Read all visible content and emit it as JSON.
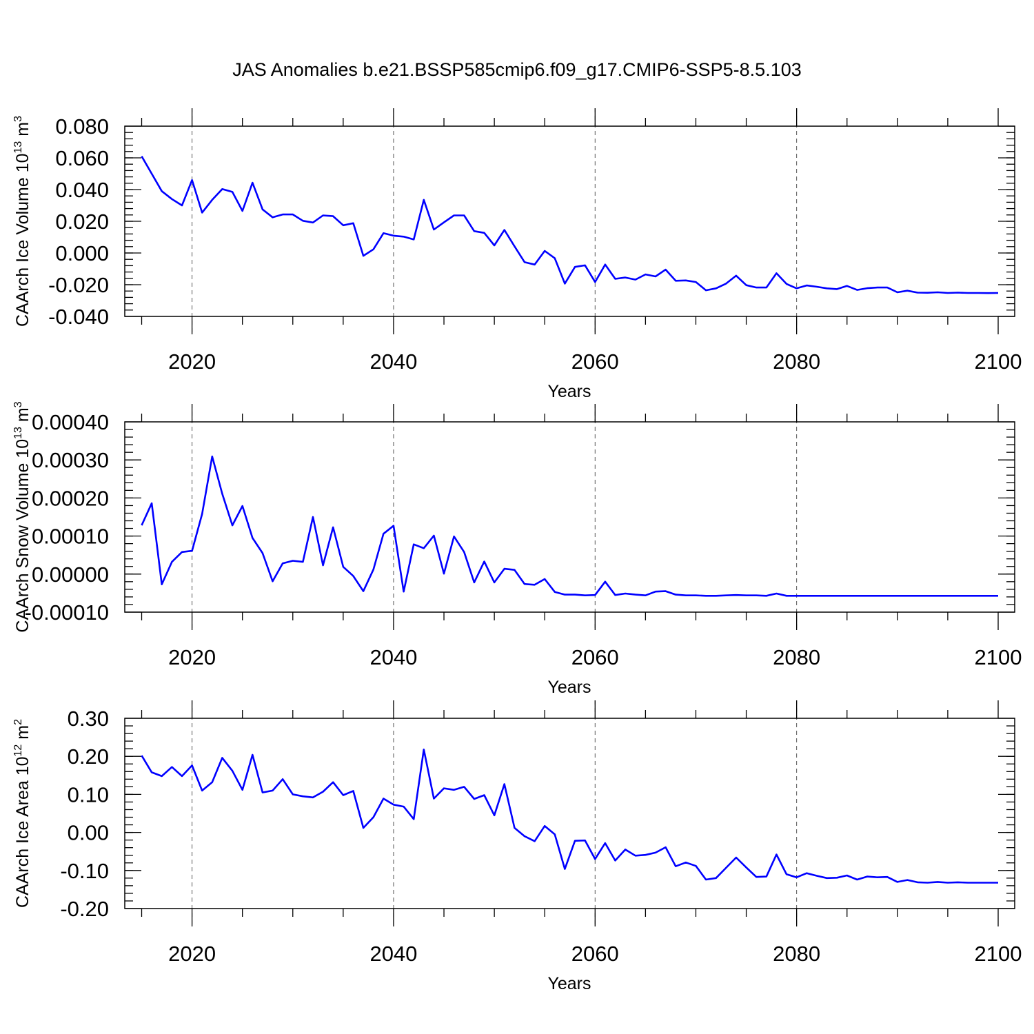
{
  "title": "JAS Anomalies b.e21.BSSP585cmip6.f09_g17.CMIP6-SSP5-8.5.103",
  "colors": {
    "series": "#0000ff",
    "axis": "#000000",
    "grid": "#555555"
  },
  "chart_data": [
    {
      "type": "line",
      "ylabel": "CAArch Ice Volume 10",
      "ylabel_exponent": "13",
      "ylabel_unit": " m",
      "ylabel_unit_exponent": "3",
      "xlabel": "Years",
      "xlim": [
        2015,
        2100
      ],
      "ylim": [
        -0.04,
        0.08
      ],
      "yticks": [
        -0.04,
        -0.02,
        0.0,
        0.02,
        0.04,
        0.06,
        0.08
      ],
      "ytick_labels": [
        "-0.040",
        "-0.020",
        "0.000",
        "0.020",
        "0.040",
        "0.060",
        "0.080"
      ],
      "ytick_minor_step": 0.004,
      "xticks": [
        2020,
        2040,
        2060,
        2080,
        2100
      ],
      "xtick_labels": [
        "2020",
        "2040",
        "2060",
        "2080",
        "2100"
      ],
      "grid_x": [
        2020,
        2040,
        2060,
        2080
      ],
      "x_start": 2015,
      "series": [
        {
          "name": "CAArch Ice Volume",
          "values": [
            0.061,
            0.05,
            0.039,
            0.034,
            0.03,
            0.046,
            0.0255,
            0.0335,
            0.0403,
            0.0385,
            0.0265,
            0.0443,
            0.0275,
            0.0225,
            0.0243,
            0.0243,
            0.0203,
            0.0192,
            0.0237,
            0.0232,
            0.0175,
            0.0188,
            -0.0018,
            0.0023,
            0.0125,
            0.0109,
            0.0103,
            0.0085,
            0.0335,
            0.0148,
            0.0193,
            0.0237,
            0.0237,
            0.0138,
            0.0127,
            0.0048,
            0.0145,
            0.0042,
            -0.0058,
            -0.0073,
            0.0013,
            -0.0033,
            -0.0193,
            -0.0088,
            -0.0078,
            -0.0183,
            -0.0073,
            -0.0163,
            -0.0155,
            -0.0168,
            -0.0135,
            -0.0148,
            -0.0105,
            -0.0175,
            -0.0173,
            -0.0183,
            -0.0235,
            -0.0223,
            -0.0193,
            -0.0143,
            -0.0203,
            -0.0218,
            -0.0218,
            -0.0128,
            -0.0195,
            -0.0223,
            -0.0205,
            -0.0213,
            -0.0223,
            -0.0228,
            -0.0208,
            -0.0233,
            -0.0222,
            -0.0218,
            -0.0218,
            -0.0248,
            -0.0238,
            -0.025,
            -0.0251,
            -0.0248,
            -0.0252,
            -0.025,
            -0.0252,
            -0.0252,
            -0.0253,
            -0.0252
          ]
        }
      ]
    },
    {
      "type": "line",
      "ylabel": "CAArch Snow Volume 10",
      "ylabel_exponent": "13",
      "ylabel_unit": " m",
      "ylabel_unit_exponent": "3",
      "xlabel": "Years",
      "xlim": [
        2015,
        2100
      ],
      "ylim": [
        -0.0001,
        0.0004
      ],
      "yticks": [
        -0.0001,
        0.0,
        0.0001,
        0.0002,
        0.0003,
        0.0004
      ],
      "ytick_labels": [
        "-0.00010",
        "0.00000",
        "0.00010",
        "0.00020",
        "0.00030",
        "0.00040"
      ],
      "ytick_minor_step": 2e-05,
      "xticks": [
        2020,
        2040,
        2060,
        2080,
        2100
      ],
      "xtick_labels": [
        "2020",
        "2040",
        "2060",
        "2080",
        "2100"
      ],
      "grid_x": [
        2020,
        2040,
        2060,
        2080
      ],
      "x_start": 2015,
      "series": [
        {
          "name": "CAArch Snow Volume",
          "values": [
            0.000128,
            0.000186,
            -2.7e-05,
            3.2e-05,
            5.8e-05,
            6.1e-05,
            0.000158,
            0.000309,
            0.000211,
            0.000128,
            0.000179,
            9.5e-05,
            5.5e-05,
            -1.9e-05,
            2.8e-05,
            3.5e-05,
            3.2e-05,
            0.00015,
            2.3e-05,
            0.000123,
            1.9e-05,
            -5e-06,
            -4.5e-05,
            1.2e-05,
            0.000106,
            0.000127,
            -4.6e-05,
            7.8e-05,
            6.8e-05,
            0.000101,
            1e-06,
            9.9e-05,
            5.8e-05,
            -2.2e-05,
            3.3e-05,
            -2.2e-05,
            1.4e-05,
            1.1e-05,
            -2.6e-05,
            -2.8e-05,
            -1.3e-05,
            -4.7e-05,
            -5.4e-05,
            -5.4e-05,
            -5.6e-05,
            -5.5e-05,
            -2e-05,
            -5.5e-05,
            -5.1e-05,
            -5.4e-05,
            -5.6e-05,
            -4.6e-05,
            -4.5e-05,
            -5.4e-05,
            -5.6e-05,
            -5.6e-05,
            -5.7e-05,
            -5.7e-05,
            -5.6e-05,
            -5.5e-05,
            -5.6e-05,
            -5.6e-05,
            -5.7e-05,
            -5.1e-05,
            -5.7e-05,
            -5.7e-05,
            -5.7e-05,
            -5.7e-05,
            -5.7e-05,
            -5.7e-05,
            -5.7e-05,
            -5.7e-05,
            -5.7e-05,
            -5.7e-05,
            -5.7e-05,
            -5.7e-05,
            -5.7e-05,
            -5.7e-05,
            -5.7e-05,
            -5.7e-05,
            -5.7e-05,
            -5.7e-05,
            -5.7e-05,
            -5.7e-05,
            -5.7e-05,
            -5.7e-05
          ]
        }
      ]
    },
    {
      "type": "line",
      "ylabel": "CAArch Ice Area 10",
      "ylabel_exponent": "12",
      "ylabel_unit": " m",
      "ylabel_unit_exponent": "2",
      "xlabel": "Years",
      "xlim": [
        2015,
        2100
      ],
      "ylim": [
        -0.2,
        0.3
      ],
      "yticks": [
        -0.2,
        -0.1,
        0.0,
        0.1,
        0.2,
        0.3
      ],
      "ytick_labels": [
        "-0.20",
        "-0.10",
        "0.00",
        "0.10",
        "0.20",
        "0.30"
      ],
      "ytick_minor_step": 0.02,
      "xticks": [
        2020,
        2040,
        2060,
        2080,
        2100
      ],
      "xtick_labels": [
        "2020",
        "2040",
        "2060",
        "2080",
        "2100"
      ],
      "grid_x": [
        2020,
        2040,
        2060,
        2080
      ],
      "x_start": 2015,
      "series": [
        {
          "name": "CAArch Ice Area",
          "values": [
            0.202,
            0.158,
            0.148,
            0.172,
            0.148,
            0.176,
            0.11,
            0.132,
            0.196,
            0.162,
            0.112,
            0.204,
            0.105,
            0.11,
            0.14,
            0.1,
            0.095,
            0.092,
            0.107,
            0.132,
            0.098,
            0.109,
            0.012,
            0.04,
            0.089,
            0.073,
            0.068,
            0.035,
            0.218,
            0.089,
            0.116,
            0.112,
            0.12,
            0.088,
            0.098,
            0.045,
            0.127,
            0.012,
            -0.01,
            -0.023,
            0.017,
            -0.005,
            -0.096,
            -0.022,
            -0.021,
            -0.07,
            -0.028,
            -0.074,
            -0.045,
            -0.061,
            -0.059,
            -0.053,
            -0.039,
            -0.089,
            -0.079,
            -0.088,
            -0.124,
            -0.12,
            -0.093,
            -0.066,
            -0.092,
            -0.117,
            -0.116,
            -0.058,
            -0.11,
            -0.118,
            -0.107,
            -0.114,
            -0.12,
            -0.119,
            -0.113,
            -0.124,
            -0.116,
            -0.118,
            -0.117,
            -0.13,
            -0.125,
            -0.131,
            -0.132,
            -0.13,
            -0.132,
            -0.131,
            -0.132,
            -0.132,
            -0.132,
            -0.132
          ]
        }
      ]
    }
  ]
}
